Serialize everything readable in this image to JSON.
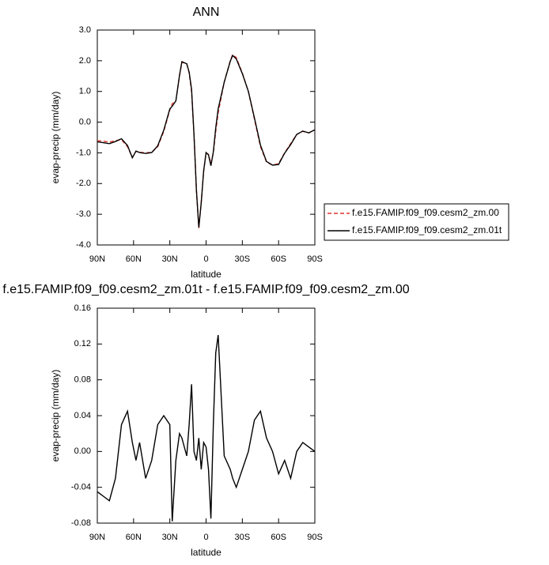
{
  "chart_data": [
    {
      "type": "line",
      "title": "ANN",
      "x_label": "latitude",
      "y_label": "evap-precip (mm/day)",
      "x": [
        90,
        85,
        80,
        75,
        70,
        65,
        61,
        58,
        55,
        50,
        45,
        40,
        35,
        30,
        28,
        25,
        22,
        20,
        16,
        14,
        12,
        10,
        8,
        6,
        4,
        2,
        0,
        -2,
        -4,
        -6,
        -8,
        -10,
        -15,
        -20,
        -22,
        -25,
        -30,
        -35,
        -40,
        -45,
        -50,
        -55,
        -60,
        -65,
        -70,
        -75,
        -80,
        -85,
        -90
      ],
      "xlim": [
        90,
        -90
      ],
      "xticks": [
        {
          "value": 90,
          "label": "90N"
        },
        {
          "value": 60,
          "label": "60N"
        },
        {
          "value": 30,
          "label": "30N"
        },
        0,
        {
          "value": -30,
          "label": "30S"
        },
        {
          "value": -60,
          "label": "60S"
        },
        {
          "value": -90,
          "label": "90S"
        }
      ],
      "ylim": [
        -4,
        3
      ],
      "yticks": [
        {
          "value": -4,
          "label": "-4.0"
        },
        {
          "value": -3,
          "label": "-3.0"
        },
        {
          "value": -2,
          "label": "-2.0"
        },
        {
          "value": -1,
          "label": "-1.0"
        },
        {
          "value": 0,
          "label": "0.0"
        },
        {
          "value": 1,
          "label": "1.0"
        },
        {
          "value": 2,
          "label": "2.0"
        },
        {
          "value": 3,
          "label": "3.0"
        }
      ],
      "legend": "right",
      "series": [
        {
          "name": "f.e15.FAMIP.f09_f09.cesm2_zm.00",
          "color": "#e0332b",
          "dash": true,
          "values": [
            -0.6,
            -0.62,
            -0.65,
            -0.6,
            -0.57,
            -0.8,
            -1.15,
            -0.95,
            -0.98,
            -1.0,
            -0.98,
            -0.8,
            -0.3,
            0.4,
            0.6,
            0.7,
            1.5,
            1.95,
            1.9,
            1.6,
            1.0,
            -0.4,
            -2.2,
            -3.45,
            -2.6,
            -1.6,
            -1.0,
            -1.05,
            -1.35,
            -1.0,
            -0.3,
            0.3,
            1.3,
            2.0,
            2.2,
            2.1,
            1.6,
            1.0,
            0.1,
            -0.8,
            -1.3,
            -1.4,
            -1.35,
            -1.0,
            -0.7,
            -0.4,
            -0.3,
            -0.35,
            -0.25
          ]
        },
        {
          "name": "f.e15.FAMIP.f09_f09.cesm2_zm.01t",
          "color": "#000000",
          "dash": false,
          "values": [
            -0.64,
            -0.67,
            -0.7,
            -0.63,
            -0.54,
            -0.76,
            -1.16,
            -0.94,
            -0.99,
            -1.02,
            -0.99,
            -0.77,
            -0.26,
            0.43,
            0.52,
            0.69,
            1.52,
            1.97,
            1.9,
            1.63,
            1.07,
            -0.4,
            -2.21,
            -3.43,
            -2.62,
            -1.59,
            -0.99,
            -1.07,
            -1.42,
            -0.97,
            -0.19,
            0.43,
            1.3,
            1.98,
            2.17,
            2.06,
            1.58,
            1.0,
            0.14,
            -0.75,
            -1.28,
            -1.4,
            -1.38,
            -1.01,
            -0.73,
            -0.4,
            -0.29,
            -0.35,
            -0.25
          ]
        }
      ]
    },
    {
      "type": "line",
      "title": "f.e15.FAMIP.f09_f09.cesm2_zm.01t - f.e15.FAMIP.f09_f09.cesm2_zm.00",
      "x_label": "latitude",
      "y_label": "evap-precip (mm/day)",
      "x": [
        90,
        85,
        80,
        75,
        70,
        65,
        61,
        58,
        55,
        50,
        45,
        40,
        35,
        30,
        28,
        25,
        22,
        20,
        16,
        14,
        12,
        10,
        8,
        6,
        4,
        2,
        0,
        -2,
        -4,
        -6,
        -8,
        -10,
        -15,
        -20,
        -22,
        -25,
        -30,
        -35,
        -40,
        -45,
        -50,
        -55,
        -60,
        -65,
        -70,
        -75,
        -80,
        -85,
        -90
      ],
      "xlim": [
        90,
        -90
      ],
      "xticks": [
        {
          "value": 90,
          "label": "90N"
        },
        {
          "value": 60,
          "label": "60N"
        },
        {
          "value": 30,
          "label": "30N"
        },
        0,
        {
          "value": -30,
          "label": "30S"
        },
        {
          "value": -60,
          "label": "60S"
        },
        {
          "value": -90,
          "label": "90S"
        }
      ],
      "ylim": [
        -0.08,
        0.16
      ],
      "yticks": [
        -0.08,
        -0.04,
        {
          "value": 0,
          "label": "0.00"
        },
        0.04,
        0.08,
        0.12,
        0.16
      ],
      "series": [
        {
          "color": "#000000",
          "values": [
            -0.045,
            -0.05,
            -0.055,
            -0.03,
            0.03,
            0.045,
            0.01,
            -0.01,
            0.01,
            -0.03,
            -0.01,
            0.03,
            0.04,
            0.03,
            -0.078,
            -0.01,
            0.02,
            0.015,
            -0.005,
            0.03,
            0.075,
            0.0,
            -0.01,
            0.015,
            -0.02,
            0.01,
            0.005,
            -0.02,
            -0.075,
            0.03,
            0.11,
            0.13,
            -0.005,
            -0.02,
            -0.03,
            -0.04,
            -0.02,
            0.0,
            0.035,
            0.045,
            0.015,
            0.0,
            -0.025,
            -0.01,
            -0.03,
            0.0,
            0.01,
            0.005,
            0.0
          ]
        }
      ]
    }
  ]
}
